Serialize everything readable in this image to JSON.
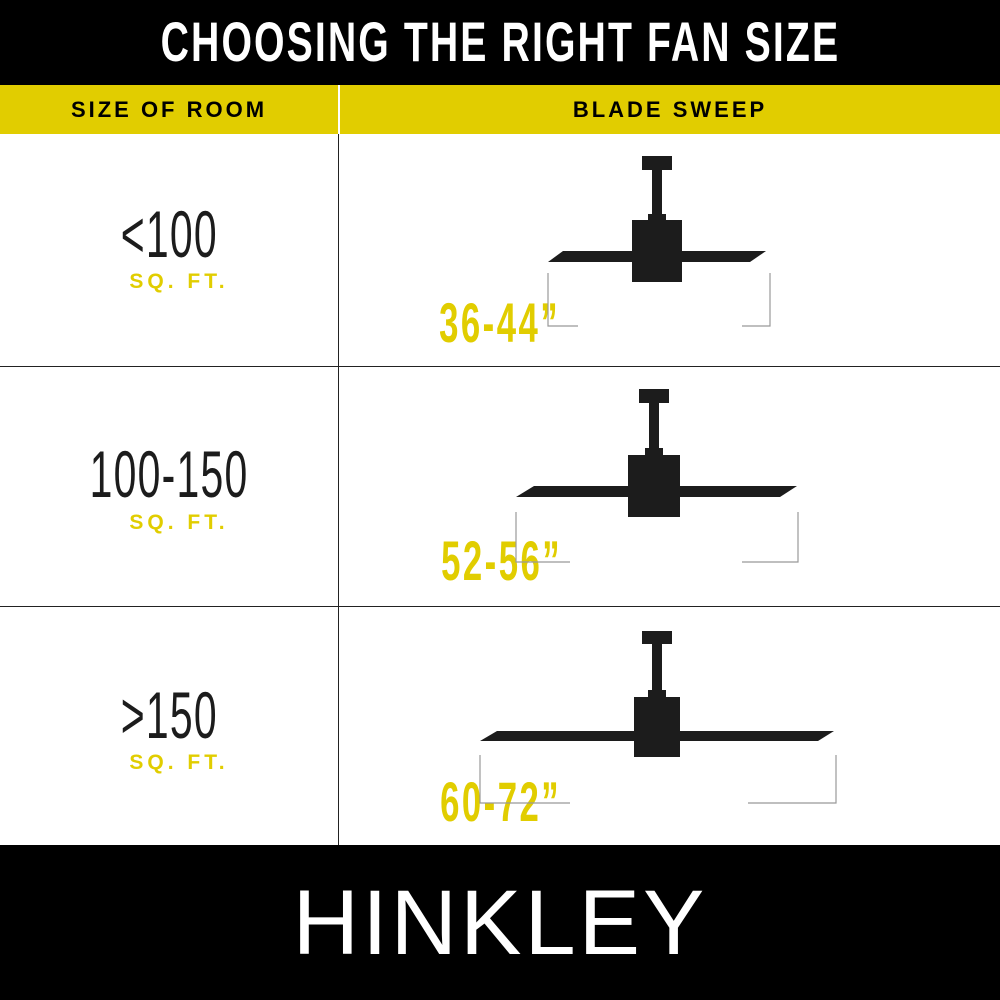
{
  "title": "CHOOSING THE RIGHT FAN SIZE",
  "columns": {
    "room": "SIZE OF ROOM",
    "sweep": "BLADE SWEEP"
  },
  "rows": [
    {
      "room_size": "<100",
      "unit": "SQ. FT.",
      "blade_sweep": "36-44”"
    },
    {
      "room_size": "100-150",
      "unit": "SQ. FT.",
      "blade_sweep": "52-56”"
    },
    {
      "room_size": ">150",
      "unit": "SQ. FT.",
      "blade_sweep": "60-72”"
    }
  ],
  "brand": "HINKLEY",
  "colors": {
    "accent": "#e1cd00",
    "header_bg": "#000000",
    "fan": "#1c1c1c"
  },
  "icons": [
    "ceiling-fan-icon"
  ]
}
